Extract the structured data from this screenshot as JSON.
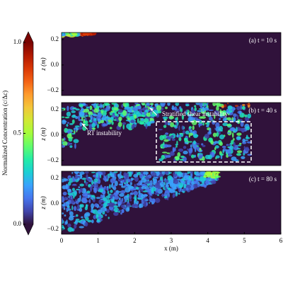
{
  "chart_data": [
    {
      "type": "heatmap",
      "panel_label": "(a) t = 10 s",
      "ylabel": "z (m)",
      "xlim": [
        0,
        6
      ],
      "ylim": [
        -0.24,
        0.255
      ],
      "yticks": [
        {
          "value": -0.2,
          "label": "−0.2"
        },
        {
          "value": 0,
          "label": "0.0"
        },
        0.2
      ]
    },
    {
      "type": "heatmap",
      "panel_label": "(b) t = 40 s",
      "ylabel": "z (m)",
      "xlim": [
        0,
        6
      ],
      "ylim": [
        -0.24,
        0.255
      ],
      "yticks": [
        {
          "value": -0.2,
          "label": "−0.2"
        },
        {
          "value": 0,
          "label": "0.0"
        },
        0.2
      ],
      "annotations": [
        "RT instability",
        "Stratified shear instability"
      ]
    },
    {
      "type": "heatmap",
      "panel_label": "(c) t = 80 s",
      "ylabel": "z (m)",
      "xlabel": "x (m)",
      "xlim": [
        0,
        6
      ],
      "ylim": [
        -0.24,
        0.255
      ],
      "yticks": [
        {
          "value": -0.2,
          "label": "−0.2"
        },
        {
          "value": 0,
          "label": "0.0"
        },
        0.2
      ],
      "xticks": [
        0,
        1,
        2,
        3,
        4,
        5,
        6
      ]
    },
    {
      "type": "colorbar",
      "label": "Normalized Concentration (c/Δc)",
      "ylim": [
        0,
        1
      ],
      "yticks": [
        {
          "value": 0,
          "label": "0.0"
        },
        {
          "value": 0.5,
          "label": "0.5"
        },
        {
          "value": 1,
          "label": "1.0"
        }
      ],
      "colors": [
        "#30123b",
        "#4145ab",
        "#4675ed",
        "#39a2fc",
        "#1bcfd4",
        "#24eca6",
        "#61fc6c",
        "#a4fc3b",
        "#d1e834",
        "#f3c63a",
        "#fe9b2d",
        "#f36315",
        "#d93806",
        "#b11901",
        "#7a0402"
      ]
    }
  ]
}
